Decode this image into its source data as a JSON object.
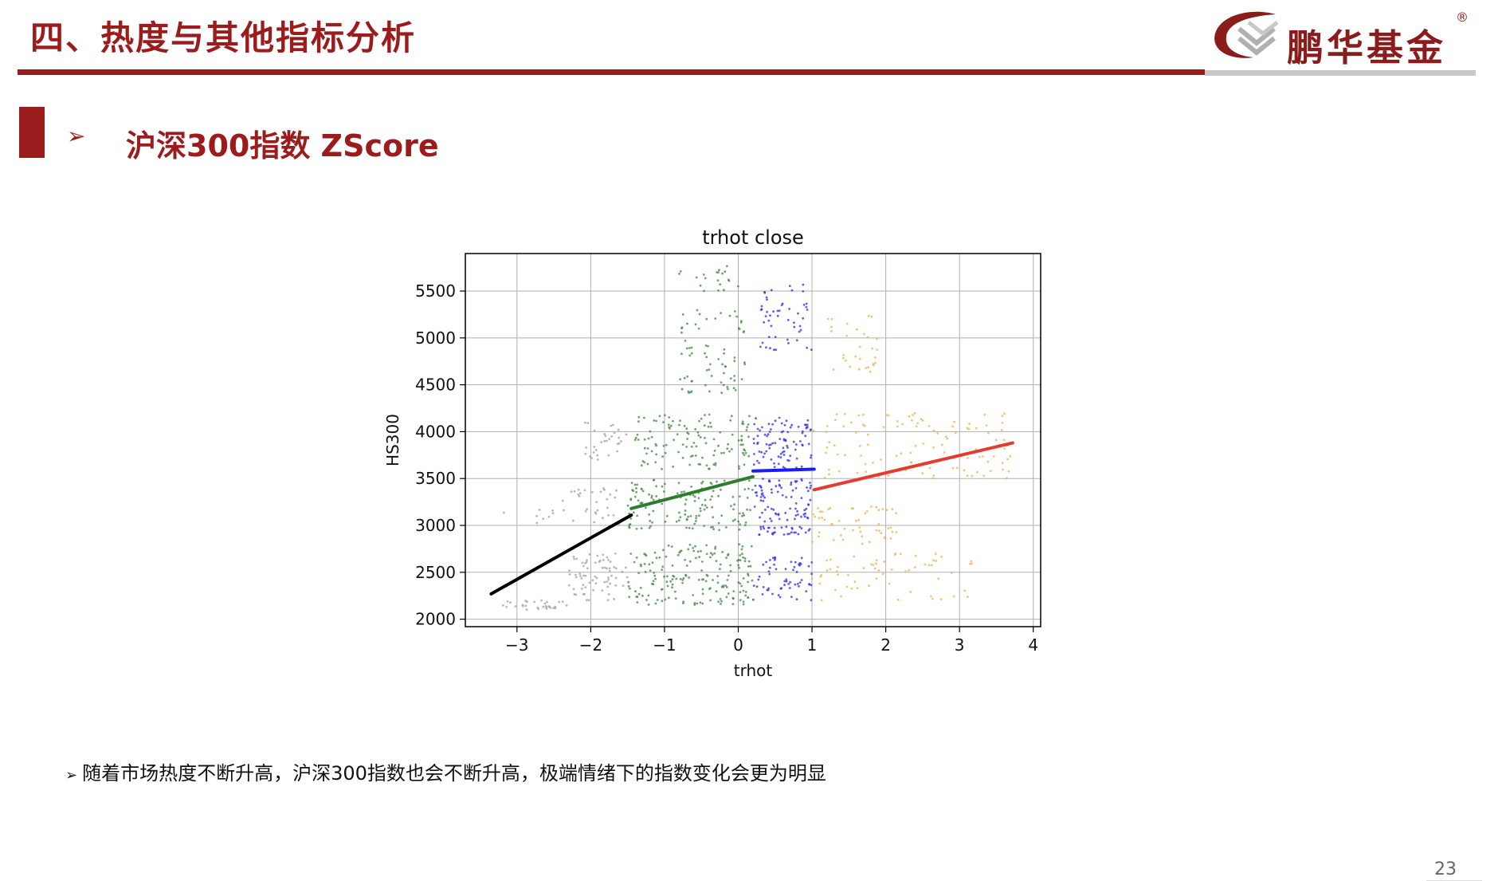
{
  "header": {
    "title": "四、热度与其他指标分析"
  },
  "brand": {
    "logo_text": "鹏华基金",
    "registered_mark": "®",
    "primary_color": "#9b1c1c",
    "secondary_color": "#c8c8c8"
  },
  "section": {
    "arrow": "➢",
    "title": "沪深300指数 ZScore"
  },
  "chart_data": {
    "type": "scatter",
    "title": "trhot close",
    "xlabel": "trhot",
    "ylabel": "HS300",
    "xlim": [
      -3.7,
      4.1
    ],
    "ylim": [
      1920,
      5900
    ],
    "xticks": [
      -3,
      -2,
      -1,
      0,
      1,
      2,
      3,
      4
    ],
    "xtick_labels": [
      "−3",
      "−2",
      "−1",
      "0",
      "1",
      "2",
      "3",
      "4"
    ],
    "yticks": [
      2000,
      2500,
      3000,
      3500,
      4000,
      4500,
      5000,
      5500
    ],
    "ytick_labels": [
      "2000",
      "2500",
      "3000",
      "3500",
      "4000",
      "4500",
      "5000",
      "5500"
    ],
    "grid": true,
    "legend": "none",
    "series": [
      {
        "color": "#a0a0a0",
        "x_range": [
          -3.3,
          -1.5
        ],
        "clusters": [
          {
            "x": [
              -3.3,
              -2.3
            ],
            "y": [
              2100,
              2200
            ],
            "n": 30
          },
          {
            "x": [
              -2.3,
              -1.5
            ],
            "y": [
              2200,
              2700
            ],
            "n": 70
          },
          {
            "x": [
              -2.4,
              -1.6
            ],
            "y": [
              3000,
              3400
            ],
            "n": 30
          },
          {
            "x": [
              -2.1,
              -1.5
            ],
            "y": [
              3700,
              4100
            ],
            "n": 30
          },
          {
            "x": [
              -3.2,
              -2.5
            ],
            "y": [
              3000,
              3200
            ],
            "n": 8
          }
        ],
        "fit": {
          "x": [
            -3.35,
            -1.45
          ],
          "y": [
            2270,
            3110
          ],
          "color": "#000000"
        }
      },
      {
        "color": "#3a8a3a",
        "x_range": [
          -1.5,
          0.2
        ],
        "clusters": [
          {
            "x": [
              -1.5,
              0.2
            ],
            "y": [
              2150,
              2800
            ],
            "n": 180
          },
          {
            "x": [
              -1.5,
              0.2
            ],
            "y": [
              2950,
              3500
            ],
            "n": 140
          },
          {
            "x": [
              -1.4,
              0.2
            ],
            "y": [
              3600,
              4200
            ],
            "n": 120
          },
          {
            "x": [
              -0.8,
              0.1
            ],
            "y": [
              4400,
              5300
            ],
            "n": 70
          },
          {
            "x": [
              -0.9,
              0.0
            ],
            "y": [
              5500,
              5800
            ],
            "n": 20
          }
        ],
        "fit": {
          "x": [
            -1.45,
            0.2
          ],
          "y": [
            3180,
            3520
          ],
          "color": "#2e7d2e"
        }
      },
      {
        "color": "#2a2aee",
        "x_range": [
          0.2,
          1.0
        ],
        "clusters": [
          {
            "x": [
              0.2,
              1.0
            ],
            "y": [
              2200,
              2700
            ],
            "n": 60
          },
          {
            "x": [
              0.2,
              1.0
            ],
            "y": [
              2900,
              3500
            ],
            "n": 110
          },
          {
            "x": [
              0.2,
              1.0
            ],
            "y": [
              3600,
              4150
            ],
            "n": 90
          },
          {
            "x": [
              0.3,
              1.0
            ],
            "y": [
              4800,
              5600
            ],
            "n": 50
          }
        ],
        "fit": {
          "x": [
            0.2,
            1.03
          ],
          "y": [
            3580,
            3600
          ],
          "color": "#1a1aff"
        }
      },
      {
        "color": "#f0b04a",
        "x_range": [
          1.0,
          3.7
        ],
        "clusters": [
          {
            "x": [
              1.0,
              3.2
            ],
            "y": [
              2200,
              2700
            ],
            "n": 60
          },
          {
            "x": [
              1.0,
              2.2
            ],
            "y": [
              2800,
              3200
            ],
            "n": 50
          },
          {
            "x": [
              1.0,
              3.7
            ],
            "y": [
              3500,
              4200
            ],
            "n": 110
          },
          {
            "x": [
              1.2,
              1.9
            ],
            "y": [
              4600,
              5300
            ],
            "n": 30
          }
        ],
        "fit": {
          "x": [
            1.03,
            3.72
          ],
          "y": [
            3380,
            3880
          ],
          "color": "#e53b2e"
        }
      }
    ]
  },
  "note": {
    "arrow": "➢",
    "text": "随着市场热度不断升高，沪深300指数也会不断升高，极端情绪下的指数变化会更为明显"
  },
  "page": {
    "number": "23"
  }
}
